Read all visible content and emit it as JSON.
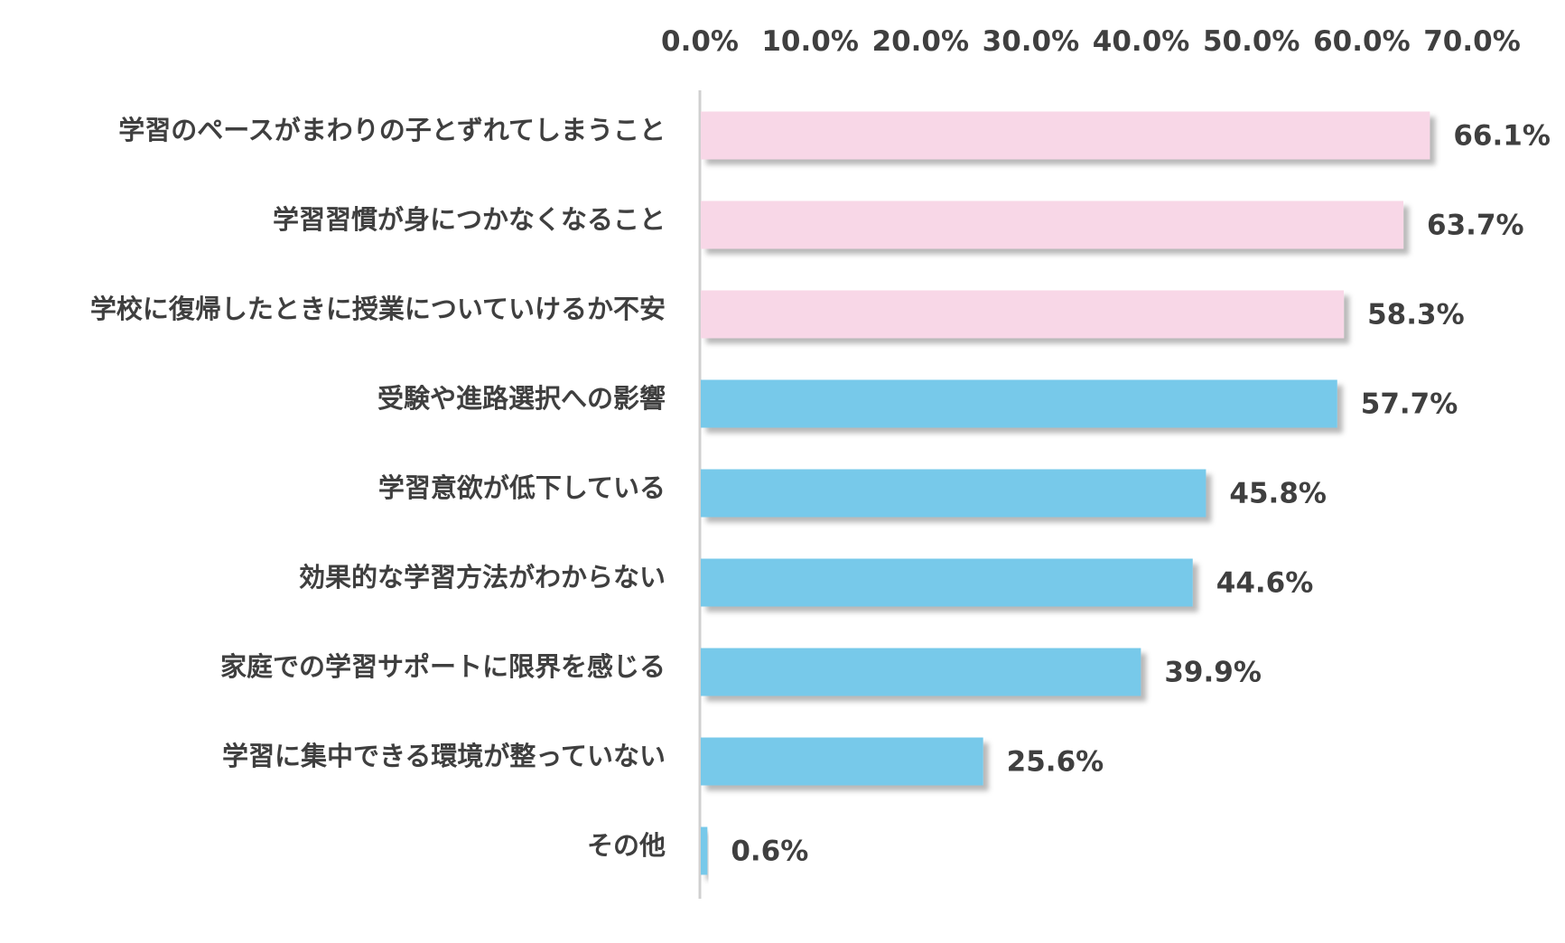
{
  "chart_data": {
    "type": "bar",
    "orientation": "horizontal",
    "categories": [
      "学習のペースがまわりの子とずれてしまうこと",
      "学習習慣が身につかなくなること",
      "学校に復帰したときに授業についていけるか不安",
      "受験や進路選択への影響",
      "学習意欲が低下している",
      "効果的な学習方法がわからない",
      "家庭での学習サポートに限界を感じる",
      "学習に集中できる環境が整っていない",
      "その他"
    ],
    "values": [
      66.1,
      63.7,
      58.3,
      57.7,
      45.8,
      44.6,
      39.9,
      25.6,
      0.6
    ],
    "value_labels": [
      "66.1%",
      "63.7%",
      "58.3%",
      "57.7%",
      "45.8%",
      "44.6%",
      "39.9%",
      "25.6%",
      "0.6%"
    ],
    "bar_colors": [
      "#f8d7e7",
      "#f8d7e7",
      "#f8d7e7",
      "#77c9ea",
      "#77c9ea",
      "#77c9ea",
      "#77c9ea",
      "#77c9ea",
      "#77c9ea"
    ],
    "xlim": [
      0,
      70
    ],
    "ticks": [
      0,
      10,
      20,
      30,
      40,
      50,
      60,
      70
    ],
    "tick_labels": [
      "0.0%",
      "10.0%",
      "20.0%",
      "30.0%",
      "40.0%",
      "50.0%",
      "60.0%",
      "70.0%"
    ],
    "x_axis_position": "top",
    "grid": false,
    "legend": false,
    "axis_line_color": "#d0d0d0",
    "text_color": "#3f3f3f"
  }
}
